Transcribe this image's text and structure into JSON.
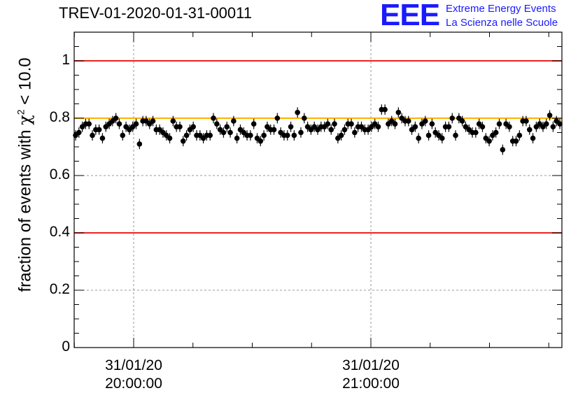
{
  "chart_data": {
    "type": "scatter",
    "title": "TREV-01-2020-01-31-00011",
    "ylabel_prefix": "fraction of events with ",
    "ylabel_symbol": "χ",
    "ylabel_sup": "2",
    "ylabel_suffix": " < 10.0",
    "ylim": [
      0,
      1.1
    ],
    "yticks": [
      "0",
      "0.2",
      "0.4",
      "0.6",
      "0.8",
      "1"
    ],
    "xticks": [
      {
        "date": "31/01/20",
        "time": "20:00:00"
      },
      {
        "date": "31/01/20",
        "time": "21:00:00"
      }
    ],
    "reference_lines": [
      {
        "y": 1.0,
        "color": "#e8231e"
      },
      {
        "y": 0.4,
        "color": "#e8231e"
      },
      {
        "y": 0.8,
        "color": "#ffb000"
      }
    ],
    "grid": true,
    "marker_color": "#000000",
    "error_bar": 0.018,
    "values": [
      0.74,
      0.75,
      0.77,
      0.78,
      0.78,
      0.74,
      0.76,
      0.76,
      0.73,
      0.77,
      0.78,
      0.79,
      0.8,
      0.78,
      0.74,
      0.77,
      0.76,
      0.77,
      0.78,
      0.71,
      0.79,
      0.79,
      0.78,
      0.79,
      0.76,
      0.76,
      0.75,
      0.74,
      0.73,
      0.79,
      0.77,
      0.77,
      0.72,
      0.74,
      0.76,
      0.77,
      0.74,
      0.74,
      0.73,
      0.74,
      0.74,
      0.8,
      0.78,
      0.76,
      0.75,
      0.77,
      0.75,
      0.79,
      0.73,
      0.76,
      0.75,
      0.74,
      0.74,
      0.78,
      0.73,
      0.72,
      0.74,
      0.77,
      0.76,
      0.76,
      0.8,
      0.75,
      0.74,
      0.74,
      0.77,
      0.74,
      0.82,
      0.75,
      0.8,
      0.77,
      0.76,
      0.77,
      0.76,
      0.77,
      0.77,
      0.78,
      0.76,
      0.78,
      0.73,
      0.74,
      0.76,
      0.78,
      0.78,
      0.75,
      0.77,
      0.77,
      0.76,
      0.76,
      0.77,
      0.78,
      0.77,
      0.83,
      0.83,
      0.78,
      0.79,
      0.78,
      0.82,
      0.8,
      0.79,
      0.79,
      0.76,
      0.77,
      0.73,
      0.78,
      0.79,
      0.74,
      0.78,
      0.75,
      0.74,
      0.73,
      0.77,
      0.77,
      0.8,
      0.74,
      0.8,
      0.79,
      0.77,
      0.76,
      0.75,
      0.75,
      0.78,
      0.77,
      0.73,
      0.72,
      0.74,
      0.75,
      0.78,
      0.69,
      0.78,
      0.77,
      0.72,
      0.72,
      0.74,
      0.79,
      0.79,
      0.76,
      0.73,
      0.77,
      0.78,
      0.77,
      0.78,
      0.81,
      0.77,
      0.79,
      0.78
    ]
  },
  "logo": {
    "mark": "EEE",
    "line1": "Extreme Energy Events",
    "line2": "La Scienza nelle Scuole"
  }
}
